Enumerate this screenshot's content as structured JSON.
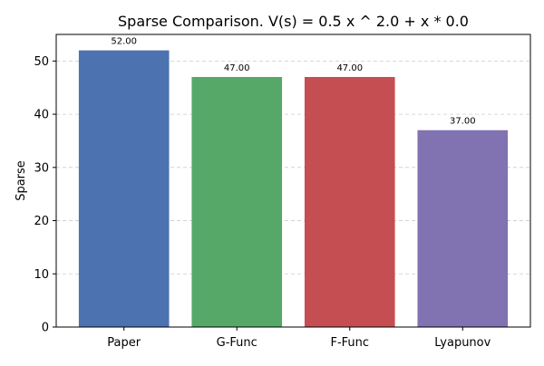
{
  "chart_data": {
    "type": "bar",
    "title": "Sparse Comparison. V(s) = 0.5 x ^ 2.0 + x * 0.0",
    "xlabel": "",
    "ylabel": "Sparse",
    "categories": [
      "Paper",
      "G-Func",
      "F-Func",
      "Lyapunov"
    ],
    "values": [
      52,
      47,
      47,
      37
    ],
    "value_labels": [
      "52.00",
      "47.00",
      "47.00",
      "37.00"
    ],
    "colors": [
      "#4c72b0",
      "#55a868",
      "#c44e52",
      "#8172b2"
    ],
    "ylim": [
      0,
      55
    ],
    "yticks": [
      0,
      10,
      20,
      30,
      40,
      50
    ],
    "grid": true,
    "grid_axis": "y",
    "legend": "none"
  }
}
